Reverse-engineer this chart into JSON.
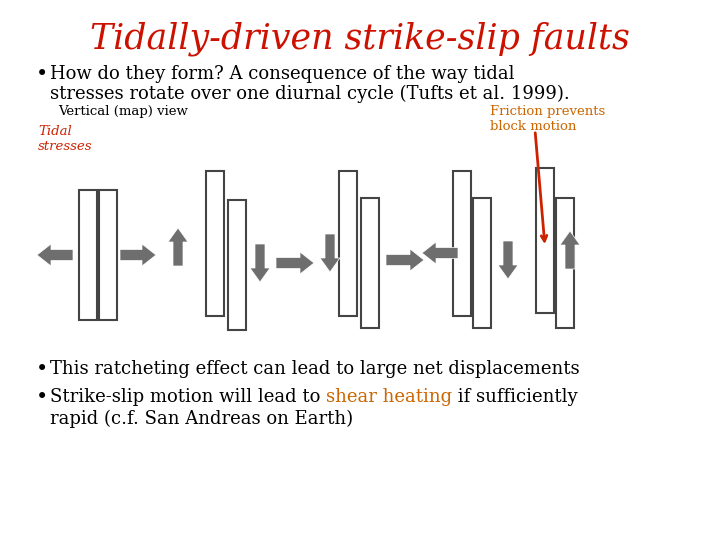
{
  "title": "Tidally-driven strike-slip faults",
  "title_color": "#cc1100",
  "bg_color": "#ffffff",
  "text_color": "#000000",
  "arrow_color": "#6e6e6e",
  "label_tidal_color": "#cc2200",
  "label_friction_color": "#cc6600",
  "highlight_color": "#cc6600",
  "red_arrow_color": "#cc2200",
  "label_vertical": "Vertical (map) view",
  "label_tidal_line1": "Tidal",
  "label_tidal_line2": "stresses",
  "label_friction_line1": "Friction prevents",
  "label_friction_line2": "block motion",
  "bullet1_line1": "How do they form? A consequence of the way tidal",
  "bullet1_line2": "stresses rotate over one diurnal cycle (Tufts et al. 1999).",
  "bullet2": "This ratcheting effect can lead to large net displacements",
  "bullet3_pre": "Strike-slip motion will lead to ",
  "bullet3_highlight": "shear heating",
  "bullet3_post": " if sufficiently",
  "bullet3_line2": "rapid (c.f. San Andreas on Earth)"
}
